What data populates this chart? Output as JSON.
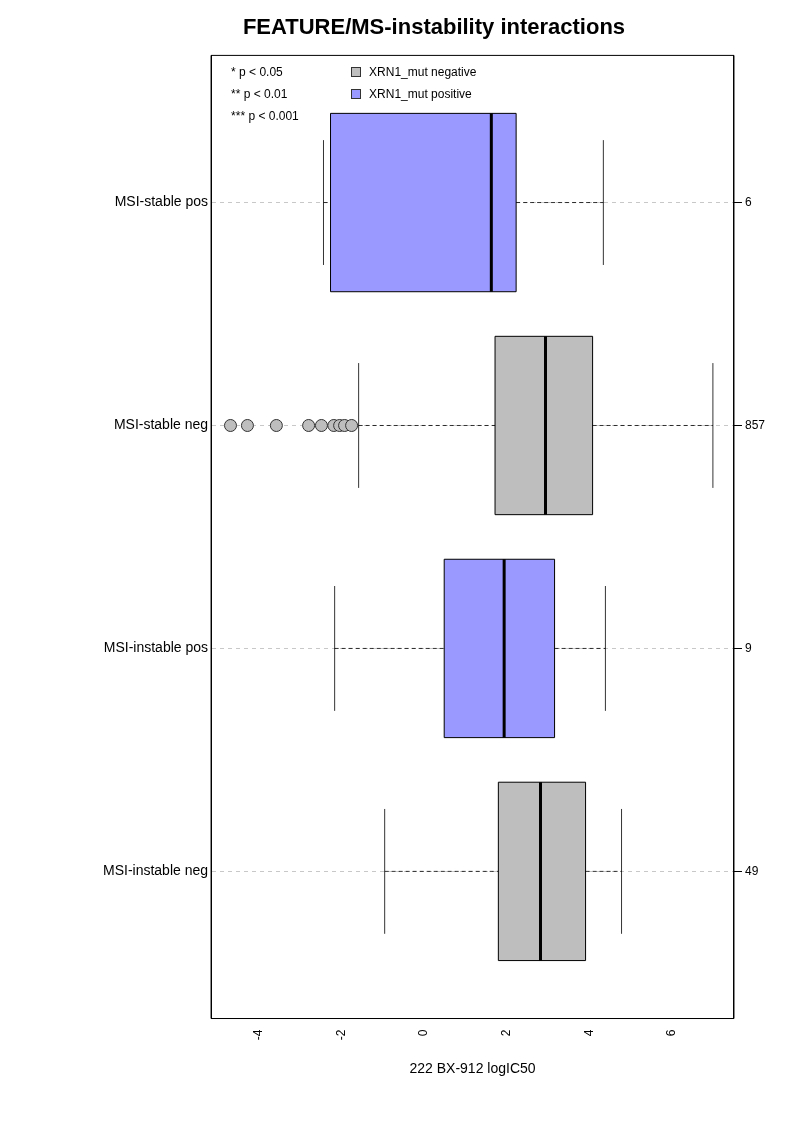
{
  "chart_data": {
    "type": "box",
    "orientation": "horizontal",
    "title": "FEATURE/MS-instability interactions",
    "xlabel": "222 BX-912 logIC50",
    "categories": [
      "MSI-stable pos",
      "MSI-stable neg",
      "MSI-instable pos",
      "MSI-instable neg"
    ],
    "y2_categories": [
      "6",
      "857",
      "9",
      "49"
    ],
    "series": [
      {
        "name": "XRN1_mut negative",
        "color": "#bebebe",
        "boxes": [
          null,
          {
            "low": -1.58,
            "q1": 1.72,
            "median": 2.94,
            "q3": 4.08,
            "high": 6.99,
            "outliers": [
              -4.68,
              -4.27,
              -3.57,
              -2.79,
              -2.48,
              -2.18,
              -2.04,
              -1.92,
              -1.75
            ]
          },
          null,
          {
            "low": -0.95,
            "q1": 1.8,
            "median": 2.82,
            "q3": 3.91,
            "high": 4.78
          }
        ]
      },
      {
        "name": "XRN1_mut positive",
        "color": "#9999ff",
        "boxes": [
          {
            "low": -2.43,
            "q1": -2.26,
            "median": 1.63,
            "q3": 2.23,
            "high": 4.34
          },
          null,
          {
            "low": -2.16,
            "q1": 0.49,
            "median": 1.94,
            "q3": 3.16,
            "high": 4.39
          },
          null
        ]
      }
    ],
    "xlim": [
      -5.15,
      7.5
    ],
    "xticks": [
      -4,
      -2,
      0,
      2,
      4,
      6
    ],
    "grid": "y",
    "legend": "top left",
    "annotations": [
      "* p < 0.05",
      "** p < 0.01",
      "*** p < 0.001"
    ]
  }
}
